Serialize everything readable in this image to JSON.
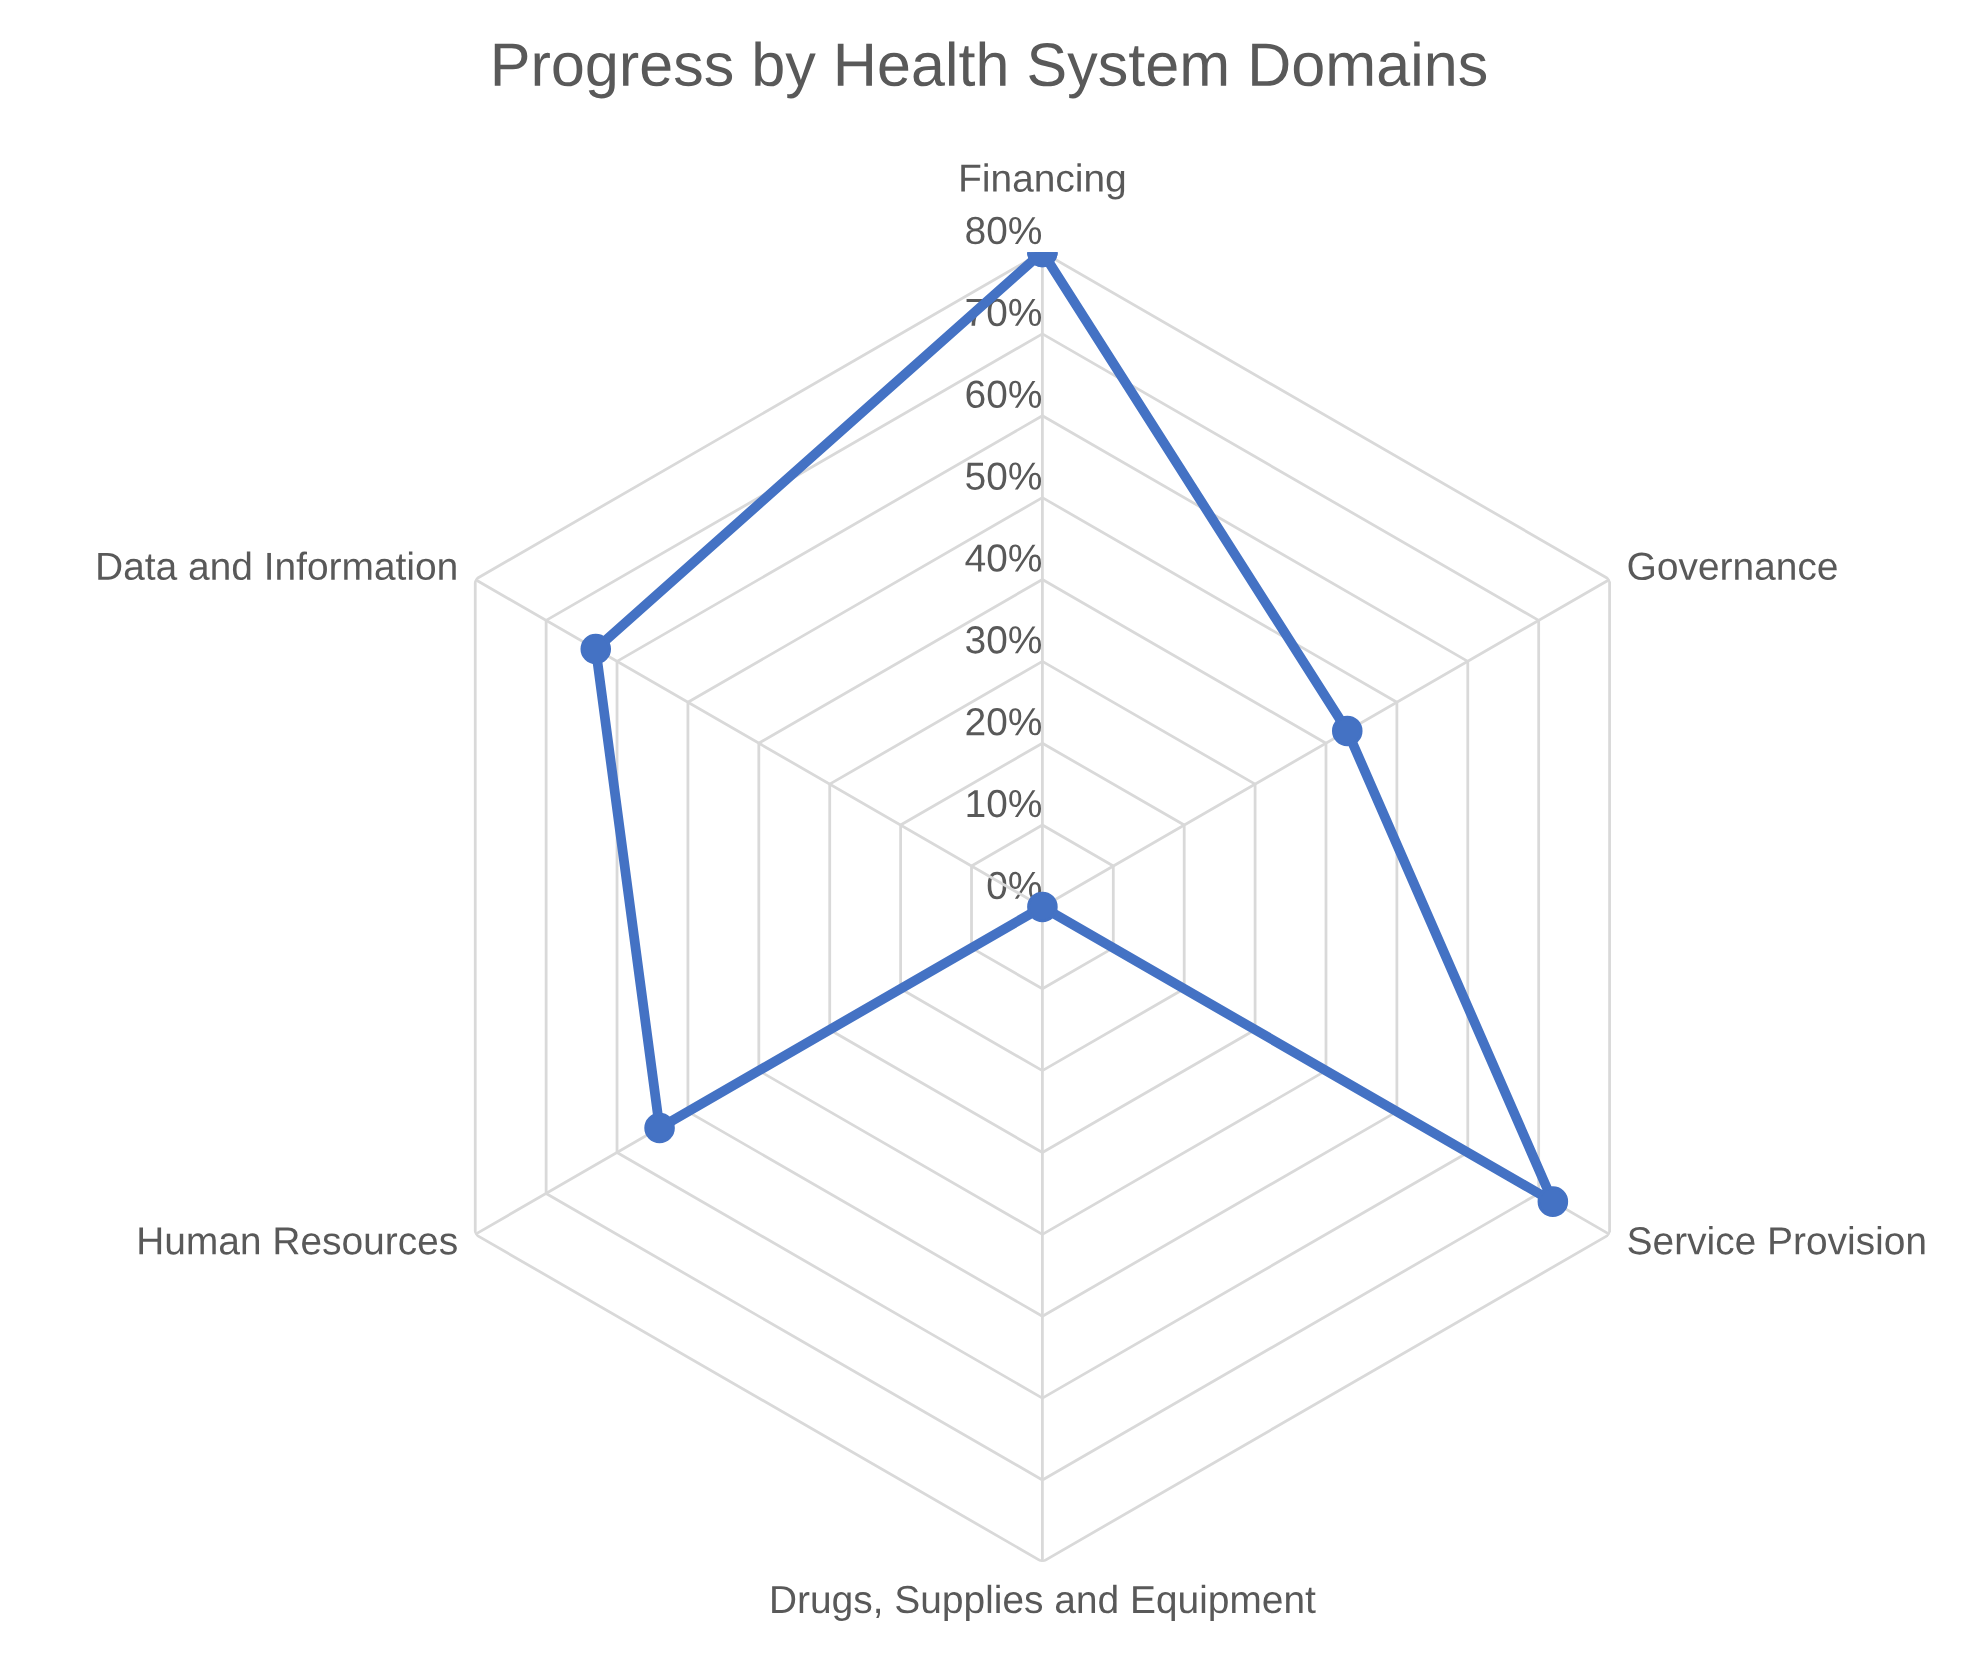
{
  "chart_data": {
    "type": "radar",
    "title": "Progress by Health System Domains",
    "categories": [
      "Financing",
      "Governance",
      "Service Provision",
      "Drugs, Supplies and Equipment",
      "Human Resources",
      "Data and Information"
    ],
    "series": [
      {
        "color": "#4472c4",
        "values": [
          80,
          43,
          72,
          0,
          54,
          63
        ]
      }
    ],
    "ylim": [
      0,
      80
    ],
    "yticks": [
      {
        "value": 0,
        "label": "0%"
      },
      {
        "value": 10,
        "label": "10%"
      },
      {
        "value": 20,
        "label": "20%"
      },
      {
        "value": 30,
        "label": "30%"
      },
      {
        "value": 40,
        "label": "40%"
      },
      {
        "value": 50,
        "label": "50%"
      },
      {
        "value": 60,
        "label": "60%"
      },
      {
        "value": 70,
        "label": "70%"
      },
      {
        "value": 80,
        "label": "80%"
      }
    ],
    "grid": true,
    "marker": "circle",
    "line_style": "solid",
    "legend": false
  }
}
